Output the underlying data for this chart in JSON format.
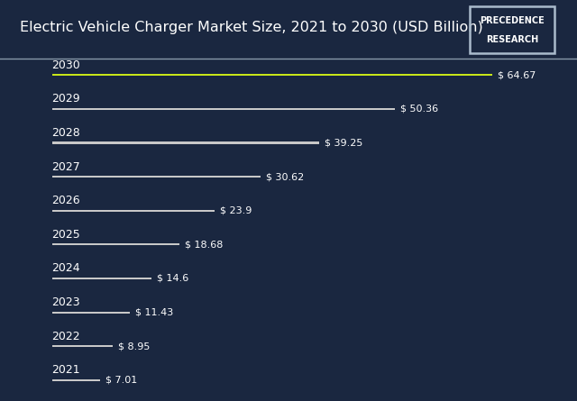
{
  "title": "Electric Vehicle Charger Market Size, 2021 to 2030 (USD Billion)",
  "years": [
    "2030",
    "2029",
    "2028",
    "2027",
    "2026",
    "2025",
    "2024",
    "2023",
    "2022",
    "2021"
  ],
  "values": [
    64.67,
    50.36,
    39.25,
    30.62,
    23.9,
    18.68,
    14.6,
    11.43,
    8.95,
    7.01
  ],
  "labels": [
    "$ 64.67",
    "$ 50.36",
    "$ 39.25",
    "$ 30.62",
    "$ 23.9",
    "$ 18.68",
    "$ 14.6",
    "$ 11.43",
    "$ 8.95",
    "$ 7.01"
  ],
  "bar_colors": [
    "#c8e619",
    "#c8c8c8",
    "#c8c8c8",
    "#c8c8c8",
    "#c8c8c8",
    "#c8c8c8",
    "#c8c8c8",
    "#c8c8c8",
    "#c8c8c8",
    "#c8c8c8"
  ],
  "header_bg": "#1c2b47",
  "chart_bg": "#1a2740",
  "title_color": "#ffffff",
  "label_color": "#ffffff",
  "year_color": "#ffffff",
  "sep_color": "#8899aa",
  "max_value": 72,
  "logo_text_line1": "PRECEDENCE",
  "logo_text_line2": "RESEARCH",
  "title_fontsize": 11.5,
  "bar_fontsize": 8,
  "year_fontsize": 9
}
